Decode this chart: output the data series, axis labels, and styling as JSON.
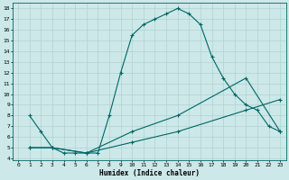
{
  "title": "",
  "xlabel": "Humidex (Indice chaleur)",
  "bg_color": "#cce8e8",
  "line_color": "#006666",
  "grid_color": "#aacccc",
  "xlim": [
    -0.5,
    23.5
  ],
  "ylim": [
    3.8,
    18.5
  ],
  "xticks": [
    0,
    1,
    2,
    3,
    4,
    5,
    6,
    7,
    8,
    9,
    10,
    11,
    12,
    13,
    14,
    15,
    16,
    17,
    18,
    19,
    20,
    21,
    22,
    23
  ],
  "yticks": [
    4,
    5,
    6,
    7,
    8,
    9,
    10,
    11,
    12,
    13,
    14,
    15,
    16,
    17,
    18
  ],
  "line1_x": [
    1,
    2,
    3,
    4,
    5,
    6,
    7,
    8,
    9,
    10,
    11,
    12,
    13,
    14,
    15,
    16,
    17,
    18,
    19,
    20,
    21,
    22,
    23
  ],
  "line1_y": [
    8,
    6.5,
    5,
    4.5,
    4.5,
    4.5,
    4.5,
    8,
    12,
    15.5,
    16.5,
    17,
    17.5,
    18,
    17.5,
    16.5,
    13.5,
    11.5,
    10,
    9,
    8.5,
    7,
    6.5
  ],
  "line2_x": [
    1,
    3,
    6,
    10,
    14,
    20,
    23
  ],
  "line2_y": [
    5,
    5,
    4.5,
    5.5,
    6.5,
    8.5,
    9.5
  ],
  "line3_x": [
    1,
    3,
    6,
    10,
    14,
    20,
    23
  ],
  "line3_y": [
    5,
    5,
    4.5,
    6.5,
    8.0,
    11.5,
    6.5
  ]
}
